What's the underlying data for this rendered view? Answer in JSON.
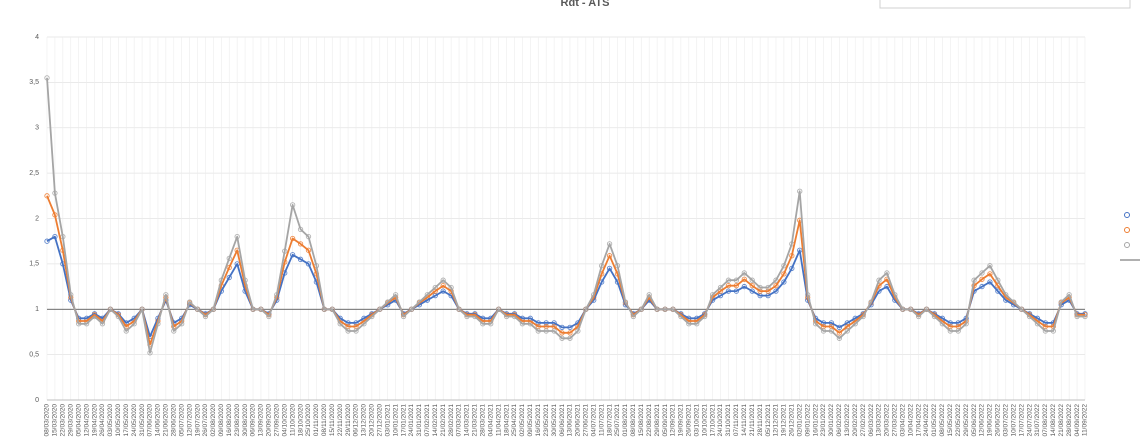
{
  "chart_data": {
    "type": "scatter-line",
    "title": "Rdt - ATS",
    "categories": [
      "08/03/2020",
      "15/03/2020",
      "22/03/2020",
      "29/03/2020",
      "05/04/2020",
      "12/04/2020",
      "19/04/2020",
      "26/04/2020",
      "03/05/2020",
      "10/05/2020",
      "17/05/2020",
      "24/05/2020",
      "31/05/2020",
      "07/06/2020",
      "14/06/2020",
      "21/06/2020",
      "28/06/2020",
      "05/07/2020",
      "12/07/2020",
      "19/07/2020",
      "26/07/2020",
      "02/08/2020",
      "09/08/2020",
      "16/08/2020",
      "23/08/2020",
      "30/08/2020",
      "06/09/2020",
      "13/09/2020",
      "20/09/2020",
      "27/09/2020",
      "04/10/2020",
      "11/10/2020",
      "18/10/2020",
      "25/10/2020",
      "01/11/2020",
      "08/11/2020",
      "15/11/2020",
      "22/11/2020",
      "29/11/2020",
      "06/12/2020",
      "13/12/2020",
      "20/12/2020",
      "27/12/2020",
      "03/01/2021",
      "10/01/2021",
      "17/01/2021",
      "24/01/2021",
      "31/01/2021",
      "07/02/2021",
      "14/02/2021",
      "21/02/2021",
      "28/02/2021",
      "07/03/2021",
      "14/03/2021",
      "21/03/2021",
      "28/03/2021",
      "04/04/2021",
      "11/04/2021",
      "18/04/2021",
      "25/04/2021",
      "02/05/2021",
      "09/05/2021",
      "16/05/2021",
      "23/05/2021",
      "30/05/2021",
      "06/06/2021",
      "13/06/2021",
      "20/06/2021",
      "27/06/2021",
      "04/07/2021",
      "11/07/2021",
      "18/07/2021",
      "25/07/2021",
      "01/08/2021",
      "08/08/2021",
      "15/08/2021",
      "22/08/2021",
      "29/08/2021",
      "05/09/2021",
      "12/09/2021",
      "19/09/2021",
      "26/09/2021",
      "03/10/2021",
      "10/10/2021",
      "17/10/2021",
      "24/10/2021",
      "31/10/2021",
      "07/11/2021",
      "14/11/2021",
      "21/11/2021",
      "28/11/2021",
      "05/12/2021",
      "12/12/2021",
      "19/12/2021",
      "26/12/2021",
      "02/01/2022",
      "09/01/2022",
      "16/01/2022",
      "23/01/2022",
      "30/01/2022",
      "06/02/2022",
      "13/02/2022",
      "20/02/2022",
      "27/02/2022",
      "06/03/2022",
      "13/03/2022",
      "20/03/2022",
      "27/03/2022",
      "03/04/2022",
      "10/04/2022",
      "17/04/2022",
      "24/04/2022",
      "01/05/2022",
      "08/05/2022",
      "15/05/2022",
      "22/05/2022",
      "29/05/2022",
      "05/06/2022",
      "12/06/2022",
      "19/06/2022",
      "26/06/2022",
      "03/07/2022",
      "10/07/2022",
      "17/07/2022",
      "24/07/2022",
      "31/07/2022",
      "07/08/2022",
      "14/08/2022",
      "21/08/2022",
      "28/08/2022",
      "04/09/2022",
      "11/09/2022"
    ],
    "series": [
      {
        "color": "#4472c4",
        "values": [
          1.75,
          1.8,
          1.5,
          1.1,
          0.9,
          0.9,
          0.95,
          0.9,
          1.0,
          0.95,
          0.85,
          0.9,
          1.0,
          0.7,
          0.9,
          1.1,
          0.85,
          0.9,
          1.05,
          1.0,
          0.95,
          1.0,
          1.2,
          1.35,
          1.5,
          1.2,
          1.0,
          1.0,
          0.95,
          1.1,
          1.4,
          1.6,
          1.55,
          1.5,
          1.3,
          1.0,
          1.0,
          0.9,
          0.85,
          0.85,
          0.9,
          0.95,
          1.0,
          1.05,
          1.1,
          0.95,
          1.0,
          1.05,
          1.1,
          1.15,
          1.2,
          1.15,
          1.0,
          0.95,
          0.95,
          0.9,
          0.9,
          1.0,
          0.95,
          0.95,
          0.9,
          0.9,
          0.85,
          0.85,
          0.85,
          0.8,
          0.8,
          0.85,
          1.0,
          1.1,
          1.3,
          1.45,
          1.3,
          1.05,
          0.95,
          1.0,
          1.1,
          1.0,
          1.0,
          1.0,
          0.95,
          0.9,
          0.9,
          0.95,
          1.1,
          1.15,
          1.2,
          1.2,
          1.25,
          1.2,
          1.15,
          1.15,
          1.2,
          1.3,
          1.45,
          1.65,
          1.1,
          0.9,
          0.85,
          0.85,
          0.8,
          0.85,
          0.9,
          0.95,
          1.05,
          1.2,
          1.25,
          1.1,
          1.0,
          1.0,
          0.95,
          1.0,
          0.95,
          0.9,
          0.85,
          0.85,
          0.9,
          1.2,
          1.25,
          1.3,
          1.2,
          1.1,
          1.05,
          1.0,
          0.95,
          0.9,
          0.85,
          0.85,
          1.05,
          1.1,
          0.95,
          0.95
        ]
      },
      {
        "color": "#ed7d31",
        "values": [
          2.25,
          2.04,
          1.65,
          1.13,
          0.87,
          0.87,
          0.94,
          0.87,
          1,
          0.94,
          0.81,
          0.87,
          1,
          0.61,
          0.87,
          1.13,
          0.81,
          0.87,
          1.07,
          1,
          0.94,
          1,
          1.26,
          1.46,
          1.65,
          1.26,
          1,
          1,
          0.94,
          1.13,
          1.52,
          1.78,
          1.72,
          1.65,
          1.39,
          1,
          1,
          0.87,
          0.81,
          0.81,
          0.87,
          0.94,
          1,
          1.07,
          1.13,
          0.94,
          1,
          1.07,
          1.13,
          1.2,
          1.26,
          1.2,
          1,
          0.94,
          0.94,
          0.87,
          0.87,
          1,
          0.94,
          0.94,
          0.87,
          0.87,
          0.81,
          0.81,
          0.81,
          0.74,
          0.74,
          0.81,
          1,
          1.13,
          1.39,
          1.59,
          1.39,
          1.07,
          0.94,
          1,
          1.13,
          1,
          1,
          1,
          0.94,
          0.87,
          0.87,
          0.94,
          1.13,
          1.2,
          1.26,
          1.26,
          1.33,
          1.26,
          1.2,
          1.2,
          1.26,
          1.39,
          1.59,
          1.98,
          1.13,
          0.87,
          0.81,
          0.81,
          0.74,
          0.81,
          0.87,
          0.94,
          1.07,
          1.26,
          1.33,
          1.13,
          1,
          1,
          0.94,
          1,
          0.94,
          0.87,
          0.81,
          0.81,
          0.87,
          1.26,
          1.33,
          1.39,
          1.26,
          1.13,
          1.07,
          1,
          0.94,
          0.87,
          0.81,
          0.81,
          1.07,
          1.13,
          0.94,
          0.94
        ]
      },
      {
        "color": "#a5a5a5",
        "values": [
          3.55,
          2.28,
          1.8,
          1.16,
          0.84,
          0.84,
          0.92,
          0.84,
          1,
          0.92,
          0.76,
          0.84,
          1,
          0.52,
          0.84,
          1.16,
          0.76,
          0.84,
          1.08,
          1,
          0.92,
          1,
          1.32,
          1.56,
          1.8,
          1.32,
          1,
          1,
          0.92,
          1.16,
          1.64,
          2.15,
          1.88,
          1.8,
          1.48,
          1,
          1,
          0.84,
          0.76,
          0.76,
          0.84,
          0.92,
          1,
          1.08,
          1.16,
          0.92,
          1,
          1.08,
          1.16,
          1.24,
          1.32,
          1.24,
          1,
          0.92,
          0.92,
          0.84,
          0.84,
          1,
          0.92,
          0.92,
          0.84,
          0.84,
          0.76,
          0.76,
          0.76,
          0.68,
          0.68,
          0.76,
          1,
          1.16,
          1.48,
          1.72,
          1.48,
          1.08,
          0.92,
          1,
          1.16,
          1,
          1,
          1,
          0.92,
          0.84,
          0.84,
          0.92,
          1.16,
          1.24,
          1.32,
          1.32,
          1.4,
          1.32,
          1.24,
          1.24,
          1.32,
          1.48,
          1.72,
          2.3,
          1.16,
          0.84,
          0.76,
          0.76,
          0.68,
          0.76,
          0.84,
          0.92,
          1.08,
          1.32,
          1.4,
          1.16,
          1,
          1,
          0.92,
          1,
          0.92,
          0.84,
          0.76,
          0.76,
          0.84,
          1.32,
          1.4,
          1.48,
          1.32,
          1.16,
          1.08,
          1,
          0.92,
          0.84,
          0.76,
          0.76,
          1.08,
          1.16,
          0.92,
          0.92
        ]
      }
    ],
    "ylim": [
      0,
      4
    ],
    "yticks": [
      0,
      {
        "value": 0.5,
        "label": "0,5"
      },
      1,
      {
        "value": 1.5,
        "label": "1,5"
      },
      2,
      {
        "value": 2.5,
        "label": "2,5"
      },
      3,
      {
        "value": 3.5,
        "label": "3,5"
      },
      4
    ],
    "grid": true,
    "reference_line": 1,
    "legend": "right"
  }
}
